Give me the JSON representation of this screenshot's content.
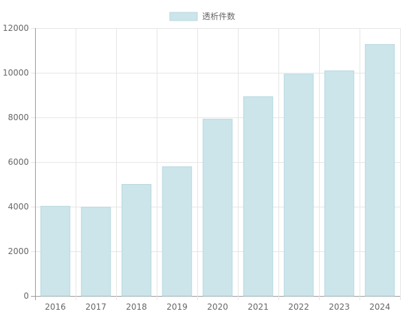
{
  "chart_data": {
    "type": "bar",
    "categories": [
      "2016",
      "2017",
      "2018",
      "2019",
      "2020",
      "2021",
      "2022",
      "2023",
      "2024"
    ],
    "series": [
      {
        "name": "透析件数",
        "values": [
          4020,
          3980,
          5000,
          5790,
          7920,
          8930,
          9940,
          10090,
          11270
        ]
      }
    ],
    "ylim": [
      0,
      12000
    ],
    "yticks": [
      0,
      2000,
      4000,
      6000,
      8000,
      10000,
      12000
    ],
    "grid": true,
    "legend_position": "top-center",
    "colors": {
      "bar_fill": "#cbe5ea",
      "bar_stroke": "#b8d8df",
      "grid": "#e5e5e5",
      "axis": "#999999",
      "text": "#666666"
    }
  }
}
